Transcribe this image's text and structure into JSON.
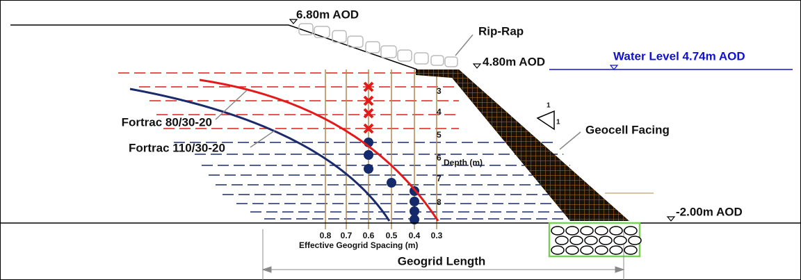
{
  "labels": {
    "top_level": "6.80m AOD",
    "rip_rap": "Rip-Rap",
    "crest_level": "4.80m AOD",
    "water_level": "Water Level 4.74m AOD",
    "fortrac_80": "Fortrac 80/30-20",
    "fortrac_110": "Fortrac 110/30-20",
    "geocell": "Geocell Facing",
    "base_level": "-2.00m AOD",
    "depth_axis": "Depth (m)",
    "spacing_axis": "Effective Geogrid Spacing (m)",
    "geogrid_length": "Geogrid Length",
    "slope_v": "1",
    "slope_h": "1"
  },
  "depth_labels": [
    "3",
    "4",
    "5",
    "6",
    "7",
    "8"
  ],
  "spacing_labels": [
    "0.8",
    "0.7",
    "0.6",
    "0.5",
    "0.4",
    "0.3"
  ]
}
